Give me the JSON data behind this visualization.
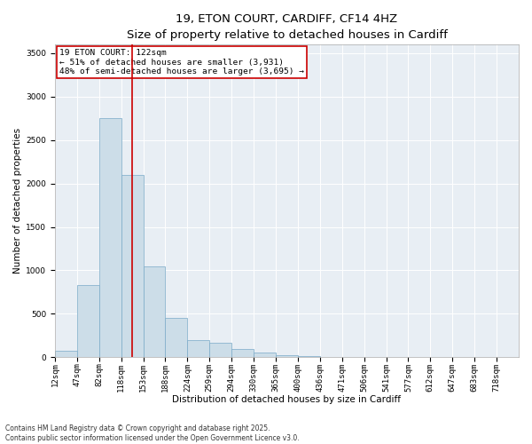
{
  "title_line1": "19, ETON COURT, CARDIFF, CF14 4HZ",
  "title_line2": "Size of property relative to detached houses in Cardiff",
  "xlabel": "Distribution of detached houses by size in Cardiff",
  "ylabel": "Number of detached properties",
  "bar_color": "#ccdde8",
  "bar_edge_color": "#7aaac8",
  "annotation_box_color": "#cc0000",
  "annotation_text": "19 ETON COURT: 122sqm\n← 51% of detached houses are smaller (3,931)\n48% of semi-detached houses are larger (3,695) →",
  "vline_color": "#cc0000",
  "vline_bar_index": 3,
  "categories": [
    "12sqm",
    "47sqm",
    "82sqm",
    "118sqm",
    "153sqm",
    "188sqm",
    "224sqm",
    "259sqm",
    "294sqm",
    "330sqm",
    "365sqm",
    "400sqm",
    "436sqm",
    "471sqm",
    "506sqm",
    "541sqm",
    "577sqm",
    "612sqm",
    "647sqm",
    "683sqm",
    "718sqm"
  ],
  "values": [
    80,
    830,
    2750,
    2100,
    1050,
    450,
    200,
    170,
    100,
    50,
    20,
    10,
    5,
    3,
    2,
    1,
    1,
    0,
    0,
    0,
    0
  ],
  "ylim": [
    0,
    3600
  ],
  "yticks": [
    0,
    500,
    1000,
    1500,
    2000,
    2500,
    3000,
    3500
  ],
  "background_color": "#e8eef4",
  "footnote": "Contains HM Land Registry data © Crown copyright and database right 2025.\nContains public sector information licensed under the Open Government Licence v3.0.",
  "title_fontsize": 9.5,
  "subtitle_fontsize": 8.5,
  "axis_label_fontsize": 7.5,
  "tick_fontsize": 6.5,
  "annotation_fontsize": 6.8,
  "footnote_fontsize": 5.5
}
